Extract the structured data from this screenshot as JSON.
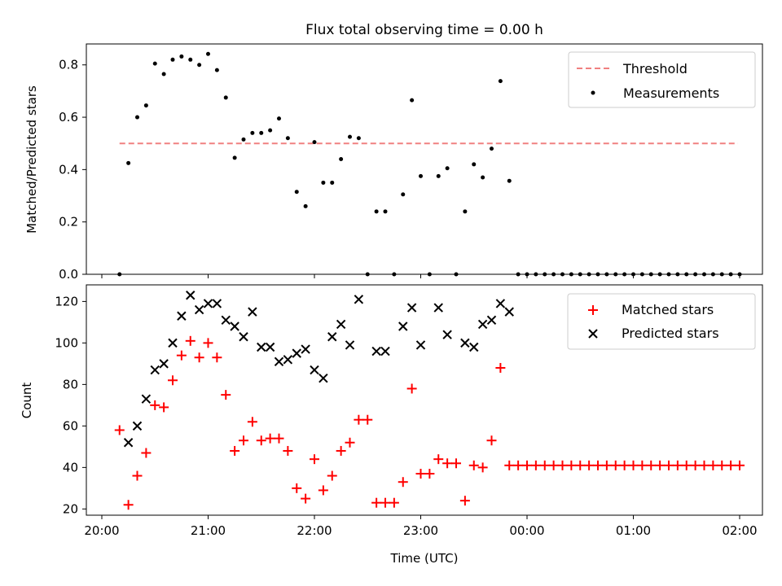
{
  "figure": {
    "title": "Flux total observing time = 0.00 h",
    "xlabel": "Time (UTC)",
    "x_ticks": [
      "20:00",
      "21:00",
      "22:00",
      "23:00",
      "00:00",
      "01:00",
      "02:00"
    ]
  },
  "chart_data": [
    {
      "type": "scatter",
      "panel": "top",
      "ylabel": "Matched/Predicted stars",
      "xlim": [
        "19:50",
        "02:15"
      ],
      "ylim": [
        0,
        0.88
      ],
      "y_ticks": [
        "0.0",
        "0.2",
        "0.4",
        "0.6",
        "0.8"
      ],
      "x_unit": "minutes from 20:00 (hh:mm shown on axis)",
      "legend": "top-right",
      "series": [
        {
          "name": "Threshold",
          "style": "dashed-line",
          "color": "#f08080",
          "x": [
            "20:10",
            "01:59"
          ],
          "y": [
            0.5,
            0.5
          ]
        },
        {
          "name": "Measurements",
          "style": "dot",
          "color": "#000000",
          "x": [
            "20:10",
            "20:15",
            "20:20",
            "20:25",
            "20:30",
            "20:35",
            "20:40",
            "20:45",
            "20:50",
            "20:55",
            "21:00",
            "21:05",
            "21:10",
            "21:15",
            "21:20",
            "21:25",
            "21:30",
            "21:35",
            "21:40",
            "21:45",
            "21:50",
            "21:55",
            "22:00",
            "22:05",
            "22:10",
            "22:15",
            "22:20",
            "22:25",
            "22:30",
            "22:35",
            "22:40",
            "22:45",
            "22:50",
            "22:55",
            "23:00",
            "23:05",
            "23:10",
            "23:15",
            "23:20",
            "23:25",
            "23:30",
            "23:35",
            "23:40",
            "23:45",
            "23:50",
            "23:55",
            "00:00",
            "00:05",
            "00:10",
            "00:15",
            "00:20",
            "00:25",
            "00:30",
            "00:35",
            "00:40",
            "00:45",
            "00:50",
            "00:55",
            "01:00",
            "01:05",
            "01:10",
            "01:15",
            "01:20",
            "01:25",
            "01:30",
            "01:35",
            "01:40",
            "01:45",
            "01:50",
            "01:55",
            "02:00"
          ],
          "y": [
            0.0,
            0.425,
            0.6,
            0.645,
            0.805,
            0.765,
            0.82,
            0.832,
            0.82,
            0.8,
            0.842,
            0.78,
            0.675,
            0.445,
            0.515,
            0.54,
            0.54,
            0.55,
            0.595,
            0.52,
            0.315,
            0.26,
            0.505,
            0.35,
            0.35,
            0.44,
            0.525,
            0.52,
            0.0,
            0.24,
            0.24,
            0.0,
            0.305,
            0.665,
            0.375,
            0.0,
            0.375,
            0.405,
            0.0,
            0.24,
            0.42,
            0.37,
            0.48,
            0.738,
            0.357,
            0.0,
            0.0,
            0.0,
            0.0,
            0.0,
            0.0,
            0.0,
            0.0,
            0.0,
            0.0,
            0.0,
            0.0,
            0.0,
            0.0,
            0.0,
            0.0,
            0.0,
            0.0,
            0.0,
            0.0,
            0.0,
            0.0,
            0.0,
            0.0,
            0.0,
            0.0
          ]
        }
      ]
    },
    {
      "type": "scatter",
      "panel": "bottom",
      "ylabel": "Count",
      "xlim": [
        "19:50",
        "02:15"
      ],
      "ylim": [
        17,
        128
      ],
      "y_ticks": [
        "20",
        "40",
        "60",
        "80",
        "100",
        "120"
      ],
      "legend": "top-right",
      "series": [
        {
          "name": "Matched stars",
          "marker": "+",
          "color": "#ff0000",
          "x": [
            "20:10",
            "20:15",
            "20:20",
            "20:25",
            "20:30",
            "20:35",
            "20:40",
            "20:45",
            "20:50",
            "20:55",
            "21:00",
            "21:05",
            "21:10",
            "21:15",
            "21:20",
            "21:25",
            "21:30",
            "21:35",
            "21:40",
            "21:45",
            "21:50",
            "21:55",
            "22:00",
            "22:05",
            "22:10",
            "22:15",
            "22:20",
            "22:25",
            "22:30",
            "22:35",
            "22:40",
            "22:45",
            "22:50",
            "22:55",
            "23:00",
            "23:05",
            "23:10",
            "23:15",
            "23:20",
            "23:25",
            "23:30",
            "23:35",
            "23:40",
            "23:45",
            "23:50",
            "23:55",
            "00:00",
            "00:05",
            "00:10",
            "00:15",
            "00:20",
            "00:25",
            "00:30",
            "00:35",
            "00:40",
            "00:45",
            "00:50",
            "00:55",
            "01:00",
            "01:05",
            "01:10",
            "01:15",
            "01:20",
            "01:25",
            "01:30",
            "01:35",
            "01:40",
            "01:45",
            "01:50",
            "01:55",
            "02:00"
          ],
          "y": [
            58,
            22,
            36,
            47,
            70,
            69,
            82,
            94,
            101,
            93,
            100,
            93,
            75,
            48,
            53,
            62,
            53,
            54,
            54,
            48,
            30,
            25,
            44,
            29,
            36,
            48,
            52,
            63,
            63,
            23,
            23,
            23,
            33,
            78,
            37,
            37,
            44,
            42,
            42,
            24,
            41,
            40,
            53,
            88,
            41,
            41,
            41,
            41,
            41,
            41,
            41,
            41,
            41,
            41,
            41,
            41,
            41,
            41,
            41,
            41,
            41,
            41,
            41,
            41,
            41,
            41,
            41,
            41,
            41,
            41,
            41
          ]
        },
        {
          "name": "Predicted stars",
          "marker": "x",
          "color": "#000000",
          "x": [
            "20:15",
            "20:20",
            "20:25",
            "20:30",
            "20:35",
            "20:40",
            "20:45",
            "20:50",
            "20:55",
            "21:00",
            "21:05",
            "21:10",
            "21:15",
            "21:20",
            "21:25",
            "21:30",
            "21:35",
            "21:40",
            "21:45",
            "21:50",
            "21:55",
            "22:00",
            "22:05",
            "22:10",
            "22:15",
            "22:20",
            "22:25",
            "22:35",
            "22:40",
            "22:50",
            "22:55",
            "23:00",
            "23:10",
            "23:15",
            "23:25",
            "23:30",
            "23:35",
            "23:40",
            "23:45",
            "23:50"
          ],
          "y": [
            52,
            60,
            73,
            87,
            90,
            100,
            113,
            123,
            116,
            119,
            119,
            111,
            108,
            103,
            115,
            98,
            98,
            91,
            92,
            95,
            97,
            87,
            83,
            103,
            109,
            99,
            121,
            96,
            96,
            108,
            117,
            99,
            117,
            104,
            100,
            98,
            109,
            111,
            119,
            115
          ]
        }
      ]
    }
  ]
}
